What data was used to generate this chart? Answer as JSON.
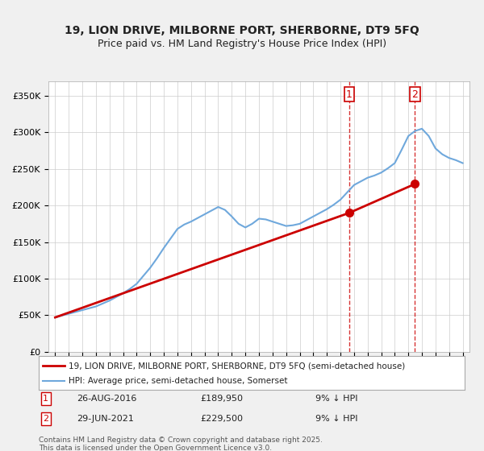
{
  "title": "19, LION DRIVE, MILBORNE PORT, SHERBORNE, DT9 5FQ",
  "subtitle": "Price paid vs. HM Land Registry's House Price Index (HPI)",
  "legend_line1": "19, LION DRIVE, MILBORNE PORT, SHERBORNE, DT9 5FQ (semi-detached house)",
  "legend_line2": "HPI: Average price, semi-detached house, Somerset",
  "footer": "Contains HM Land Registry data © Crown copyright and database right 2025.\nThis data is licensed under the Open Government Licence v3.0.",
  "sale1_date": "26-AUG-2016",
  "sale1_price": "£189,950",
  "sale1_note": "9% ↓ HPI",
  "sale2_date": "29-JUN-2021",
  "sale2_price": "£229,500",
  "sale2_note": "9% ↓ HPI",
  "hpi_color": "#6fa8dc",
  "price_color": "#cc0000",
  "marker1_color": "#cc0000",
  "marker2_color": "#cc0000",
  "vline_color": "#cc0000",
  "ylim": [
    0,
    370000
  ],
  "yticks": [
    0,
    50000,
    100000,
    150000,
    200000,
    250000,
    300000,
    350000
  ],
  "ytick_labels": [
    "£0",
    "£50K",
    "£100K",
    "£150K",
    "£200K",
    "£250K",
    "£300K",
    "£350K"
  ],
  "background_color": "#f0f0f0",
  "plot_bg_color": "#ffffff",
  "hpi_years": [
    1995,
    1996,
    1997,
    1998,
    1999,
    2000,
    2001,
    2002,
    2003,
    2004,
    2005,
    2006,
    2007,
    2008,
    2009,
    2010,
    2011,
    2012,
    2013,
    2014,
    2015,
    2016,
    2017,
    2018,
    2019,
    2020,
    2021,
    2022,
    2023,
    2024,
    2025
  ],
  "hpi_values": [
    48000,
    52000,
    57000,
    62000,
    70000,
    80000,
    93000,
    115000,
    142000,
    168000,
    178000,
    188000,
    198000,
    185000,
    170000,
    182000,
    178000,
    172000,
    175000,
    185000,
    195000,
    208000,
    228000,
    238000,
    245000,
    258000,
    295000,
    305000,
    278000,
    265000,
    258000
  ],
  "price_years": [
    1995,
    2016,
    2021
  ],
  "price_values": [
    47000,
    189950,
    229500
  ],
  "sale1_x": 2016.65,
  "sale2_x": 2021.49,
  "xmin": 1994.5,
  "xmax": 2025.5
}
